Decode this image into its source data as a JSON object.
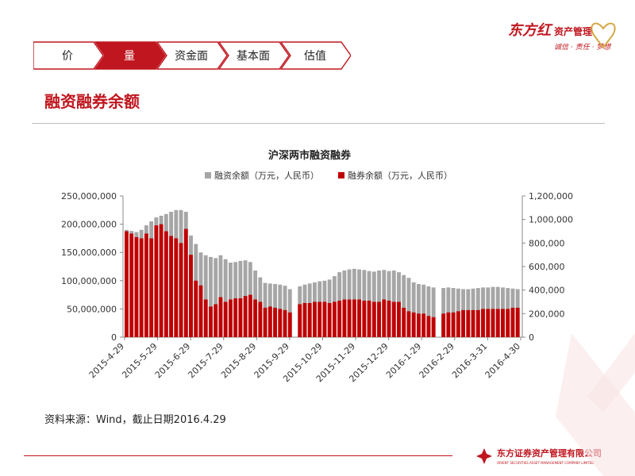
{
  "tabs": [
    {
      "label": "价",
      "active": false
    },
    {
      "label": "量",
      "active": true
    },
    {
      "label": "资金面",
      "active": false
    },
    {
      "label": "基本面",
      "active": false
    },
    {
      "label": "估值",
      "active": false
    }
  ],
  "section_title": "融资融券余额",
  "logo": {
    "brand": "东方红",
    "text": "资产管理",
    "slogan": "诚信 · 责任 · 梦想"
  },
  "source_note": "资料来源：Wind，截止日期2016.4.29",
  "footer": {
    "company_cn": "东方证券资产管理有限公司",
    "company_en": "ORIENT SECURITIES ASSET MANAGEMENT COMPANY LIMITED"
  },
  "colors": {
    "accent": "#c0161f",
    "financing": "#a6a6a6",
    "securities": "#c00000"
  },
  "chart_data": {
    "type": "bar",
    "title": "沪深两市融资融券",
    "legend": [
      "融资余额（万元，人民币）",
      "融券余额（万元，人民币）"
    ],
    "legend_position": "top",
    "y_left": {
      "min": 0,
      "max": 250000000,
      "ticks": [
        "0",
        "50,000,000",
        "100,000,000",
        "150,000,000",
        "200,000,000",
        "250,000,000"
      ]
    },
    "y_right": {
      "min": 0,
      "max": 1200000,
      "ticks": [
        "0",
        "200,000",
        "400,000",
        "600,000",
        "800,000",
        "1,000,000",
        "1,200,000"
      ]
    },
    "x_tick_labels": [
      "2015-4-29",
      "2015-5-29",
      "2015-6-29",
      "2015-7-29",
      "2015-8-29",
      "2015-9-29",
      "2015-10-29",
      "2015-11-29",
      "2015-12-29",
      "2016-1-29",
      "2016-2-29",
      "2016-3-31",
      "2016-4-30"
    ],
    "series": [
      {
        "name": "融资余额（万元，人民币）",
        "axis": "left",
        "values": [
          190,
          188,
          186,
          190,
          198,
          205,
          212,
          215,
          218,
          222,
          225,
          225,
          222,
          180,
          165,
          150,
          145,
          142,
          140,
          145,
          138,
          132,
          133,
          135,
          136,
          133,
          118,
          106,
          96,
          95,
          94,
          93,
          91,
          85,
          0,
          90,
          93,
          95,
          97,
          99,
          100,
          102,
          108,
          115,
          118,
          120,
          121,
          120,
          119,
          117,
          116,
          118,
          119,
          117,
          118,
          115,
          110,
          105,
          97,
          94,
          93,
          90,
          88,
          0,
          87,
          88,
          87,
          86,
          85,
          85,
          86,
          87,
          88,
          88,
          89,
          89,
          88,
          87,
          86,
          85
        ]
      },
      {
        "name": "融券余额（万元，人民币）",
        "axis": "right",
        "values": [
          900,
          880,
          850,
          840,
          880,
          840,
          950,
          960,
          900,
          860,
          840,
          800,
          920,
          700,
          480,
          440,
          320,
          260,
          280,
          340,
          300,
          320,
          330,
          330,
          350,
          360,
          320,
          300,
          250,
          260,
          250,
          240,
          230,
          210,
          0,
          280,
          290,
          290,
          300,
          300,
          300,
          290,
          300,
          310,
          320,
          320,
          320,
          320,
          310,
          310,
          300,
          300,
          320,
          310,
          300,
          300,
          250,
          220,
          210,
          200,
          200,
          180,
          170,
          0,
          200,
          210,
          210,
          220,
          230,
          230,
          230,
          230,
          240,
          240,
          240,
          240,
          240,
          240,
          250,
          250
        ]
      }
    ],
    "units_note": "series values in millions of 万元 (left) and thousands of 万元 (right)"
  }
}
